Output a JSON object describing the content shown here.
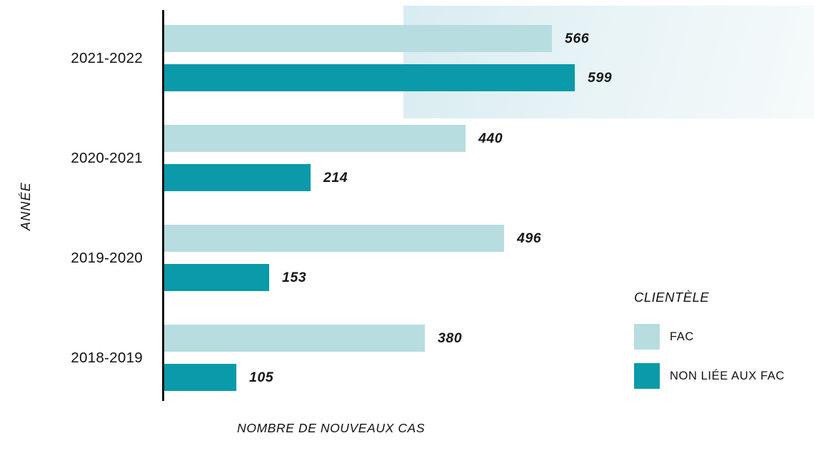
{
  "axes": {
    "y_label": "ANNÉE",
    "x_label": "NOMBRE DE NOUVEAUX CAS"
  },
  "legend": {
    "title": "CLIENTÈLE",
    "items": [
      {
        "label": "FAC",
        "color": "#b7dde0"
      },
      {
        "label": "NON LIÉE AUX FAC",
        "color": "#0a9aaa"
      }
    ]
  },
  "colors": {
    "fac": "#b7dde0",
    "non_fac": "#0a9aaa",
    "axis": "#101010",
    "background_fade_start": "#d8ecf1",
    "background_fade_end": "#f6fafb"
  },
  "chart_data": {
    "type": "bar",
    "orientation": "horizontal",
    "title": "",
    "categories": [
      "2021-2022",
      "2020-2021",
      "2019-2020",
      "2018-2019"
    ],
    "series": [
      {
        "name": "FAC",
        "color": "#b7dde0",
        "values": [
          566,
          440,
          496,
          380
        ]
      },
      {
        "name": "NON LIÉE AUX FAC",
        "color": "#0a9aaa",
        "values": [
          599,
          214,
          153,
          105
        ]
      }
    ],
    "xlabel": "NOMBRE DE NOUVEAUX CAS",
    "ylabel": "ANNÉE",
    "xlim": [
      0,
      620
    ],
    "value_labels": true,
    "grid": false,
    "legend_position": "right"
  }
}
